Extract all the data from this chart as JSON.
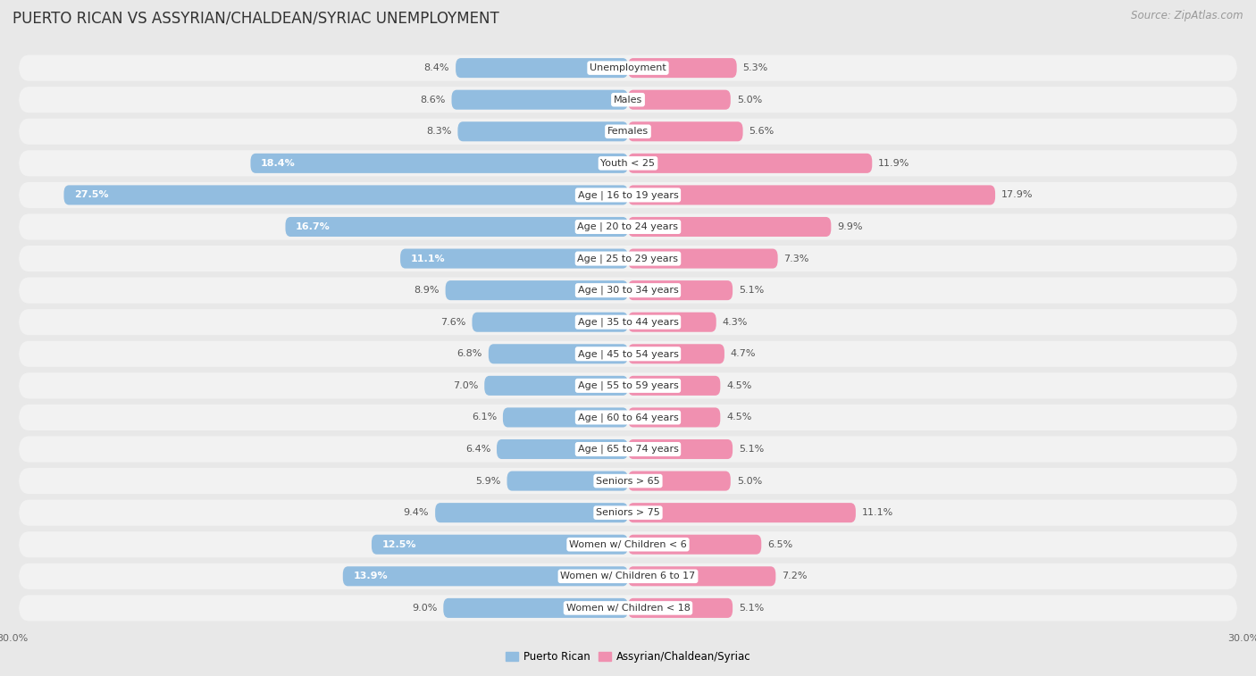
{
  "title": "PUERTO RICAN VS ASSYRIAN/CHALDEAN/SYRIAC UNEMPLOYMENT",
  "source": "Source: ZipAtlas.com",
  "categories": [
    "Unemployment",
    "Males",
    "Females",
    "Youth < 25",
    "Age | 16 to 19 years",
    "Age | 20 to 24 years",
    "Age | 25 to 29 years",
    "Age | 30 to 34 years",
    "Age | 35 to 44 years",
    "Age | 45 to 54 years",
    "Age | 55 to 59 years",
    "Age | 60 to 64 years",
    "Age | 65 to 74 years",
    "Seniors > 65",
    "Seniors > 75",
    "Women w/ Children < 6",
    "Women w/ Children 6 to 17",
    "Women w/ Children < 18"
  ],
  "puerto_rican": [
    8.4,
    8.6,
    8.3,
    18.4,
    27.5,
    16.7,
    11.1,
    8.9,
    7.6,
    6.8,
    7.0,
    6.1,
    6.4,
    5.9,
    9.4,
    12.5,
    13.9,
    9.0
  ],
  "assyrian": [
    5.3,
    5.0,
    5.6,
    11.9,
    17.9,
    9.9,
    7.3,
    5.1,
    4.3,
    4.7,
    4.5,
    4.5,
    5.1,
    5.0,
    11.1,
    6.5,
    7.2,
    5.1
  ],
  "puerto_rican_color": "#92bde0",
  "assyrian_color": "#f090b0",
  "bg_color": "#e8e8e8",
  "row_bg_color": "#f2f2f2",
  "axis_max": 30.0,
  "legend_label_pr": "Puerto Rican",
  "legend_label_as": "Assyrian/Chaldean/Syriac",
  "title_fontsize": 12,
  "source_fontsize": 8.5,
  "bar_label_fontsize": 8,
  "category_fontsize": 8,
  "axis_label_fontsize": 8
}
